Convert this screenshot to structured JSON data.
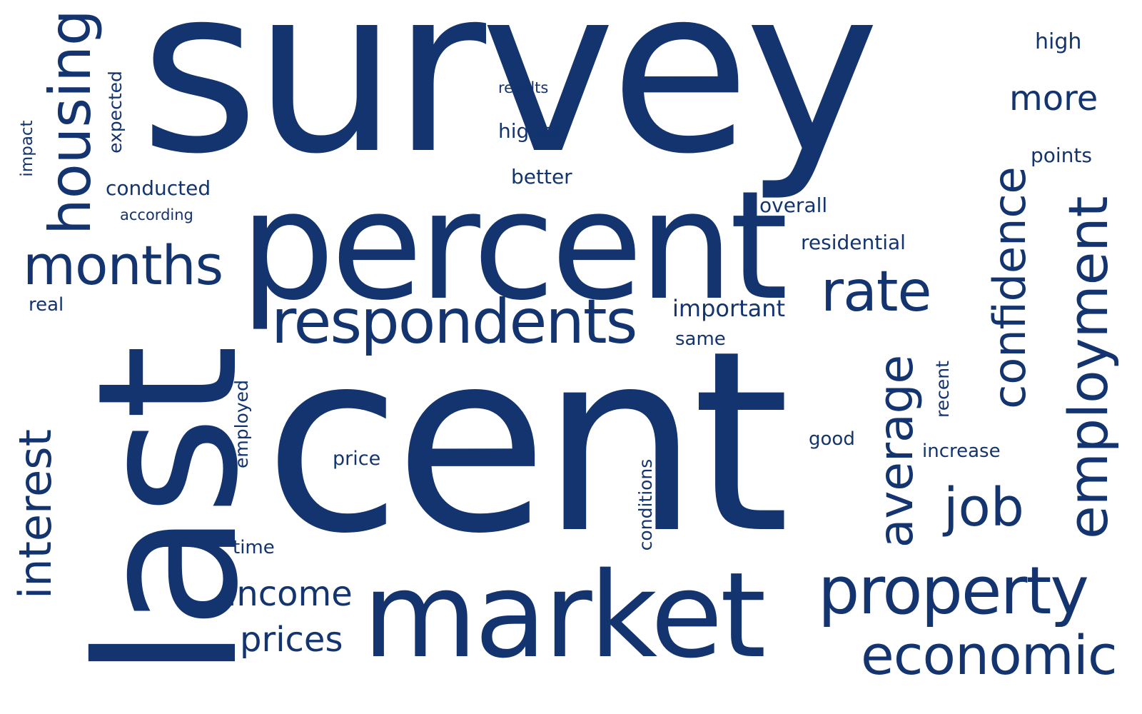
{
  "colors": {
    "text": "#13346e",
    "background": "#ffffff"
  },
  "words": [
    "survey",
    "cent",
    "last",
    "percent",
    "market",
    "respondents",
    "housing",
    "months",
    "interest",
    "property",
    "economic",
    "employment",
    "confidence",
    "rate",
    "average",
    "job",
    "income",
    "prices",
    "more",
    "high",
    "points",
    "expected",
    "impact",
    "conducted",
    "according",
    "real",
    "results",
    "higher",
    "better",
    "overall",
    "residential",
    "important",
    "same",
    "recent",
    "good",
    "increase",
    "employed",
    "price",
    "conditions",
    "time"
  ]
}
